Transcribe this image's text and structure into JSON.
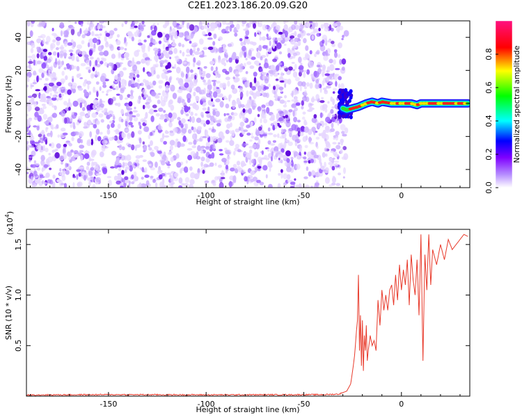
{
  "figure": {
    "title": "C2E1.2023.186.20.09.G20"
  },
  "chart_data": [
    {
      "type": "heatmap",
      "xlabel": "Height of straight line (km)",
      "ylabel": "Frequency (Hz)",
      "xlim": [
        -192,
        35
      ],
      "ylim": [
        -51,
        50
      ],
      "xticks": [
        -150,
        -100,
        -50,
        0
      ],
      "yticks": [
        -40,
        -20,
        0,
        20,
        40
      ],
      "noise_region_x": [
        -192,
        -31
      ],
      "signal_track": {
        "x": [
          -30,
          -28,
          -25,
          -22,
          -20,
          -18,
          -15,
          -12,
          -10,
          -5,
          0,
          5,
          8,
          10,
          15,
          20,
          25,
          30,
          34
        ],
        "y": [
          -3,
          -4,
          -3,
          -2,
          -1,
          0,
          1,
          0,
          1,
          0,
          0,
          0,
          -1,
          0,
          0,
          0,
          0,
          0,
          0
        ]
      },
      "colorbar": {
        "label": "Normalized spectral amplitude",
        "ticks": [
          0.0,
          0.2,
          0.4,
          0.6,
          0.8
        ],
        "range": [
          0,
          1
        ],
        "colors": [
          "#ffffff",
          "#7f00ff",
          "#0000ff",
          "#00ffff",
          "#00ff00",
          "#ffff00",
          "#ff0000",
          "#ff1080"
        ]
      },
      "grid": false
    },
    {
      "type": "line",
      "xlabel": "Height of straight line (km)",
      "ylabel": "SNR (10 * v/v)",
      "multiplier": "(x10",
      "multiplier_exp": "4",
      "multiplier_close": ")",
      "xlim": [
        -192,
        35
      ],
      "ylim": [
        0,
        16500
      ],
      "xticks": [
        -150,
        -100,
        -50,
        0
      ],
      "yticks": [
        5000,
        10000,
        15000
      ],
      "ytick_labels": [
        "0.5",
        "1.0",
        "1.5"
      ],
      "series": [
        {
          "color": "#e8392a",
          "x": [
            -192,
            -150,
            -100,
            -60,
            -40,
            -32,
            -28,
            -26,
            -25,
            -24,
            -23,
            -22.5,
            -22,
            -21.5,
            -21,
            -20.5,
            -20,
            -19.5,
            -19,
            -18.5,
            -18,
            -17.5,
            -17,
            -16,
            -15,
            -14,
            -13,
            -12,
            -11,
            -10,
            -9,
            -8,
            -7,
            -6,
            -5,
            -4,
            -3,
            -2,
            -1,
            0,
            1,
            2,
            3,
            4,
            5,
            6,
            7,
            8,
            9,
            10,
            11,
            12,
            13,
            14,
            15,
            16,
            18,
            20,
            22,
            24,
            26,
            28,
            30,
            32,
            34
          ],
          "y": [
            120,
            150,
            130,
            140,
            150,
            200,
            500,
            1200,
            2500,
            4000,
            6500,
            7500,
            12000,
            4500,
            8000,
            3000,
            7500,
            2500,
            6000,
            4500,
            7000,
            3500,
            4500,
            6000,
            5000,
            5500,
            4500,
            9500,
            7000,
            10500,
            8500,
            10000,
            8500,
            10500,
            11000,
            9000,
            12000,
            9500,
            13000,
            10500,
            12500,
            11000,
            13500,
            9000,
            14000,
            11500,
            10000,
            13500,
            8000,
            16000,
            3500,
            14000,
            10500,
            16000,
            11000,
            14500,
            13000,
            15000,
            13500,
            15500,
            14500,
            15000,
            15500,
            16000,
            15800
          ]
        }
      ],
      "grid": false
    }
  ]
}
